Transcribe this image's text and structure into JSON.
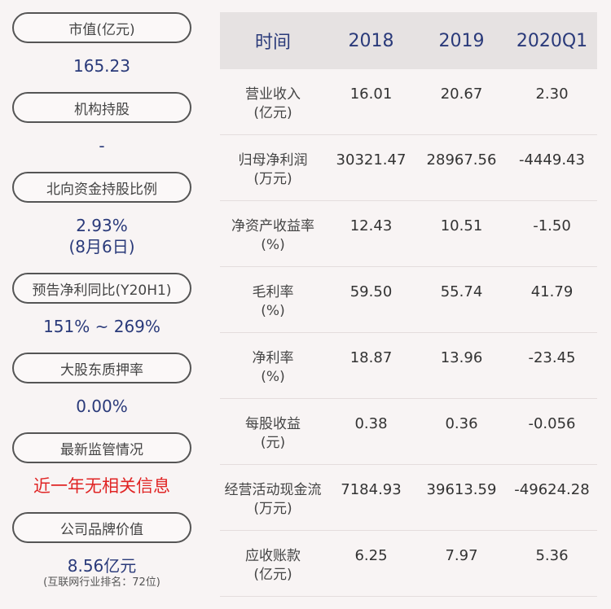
{
  "sidebar": {
    "items": [
      {
        "label": "市值(亿元)",
        "value": "165.23"
      },
      {
        "label": "机构持股",
        "value": "-"
      },
      {
        "label": "北向资金持股比例",
        "value": "2.93%",
        "value2": "(8月6日)"
      },
      {
        "label": "预告净利同比(Y20H1)",
        "value": "151% ~ 269%"
      },
      {
        "label": "大股东质押率",
        "value": "0.00%"
      },
      {
        "label": "最新监管情况",
        "value": "近一年无相关信息"
      },
      {
        "label": "公司品牌价值",
        "value": "8.56亿元",
        "note": "(互联网行业排名：72位)"
      }
    ]
  },
  "table": {
    "headers": [
      "时间",
      "2018",
      "2019",
      "2020Q1"
    ],
    "rows": [
      {
        "name": "营业收入",
        "unit": "(亿元)",
        "values": [
          "16.01",
          "20.67",
          "2.30"
        ]
      },
      {
        "name": "归母净利润",
        "unit": "(万元)",
        "values": [
          "30321.47",
          "28967.56",
          "-4449.43"
        ]
      },
      {
        "name": "净资产收益率",
        "unit": "(%)",
        "values": [
          "12.43",
          "10.51",
          "-1.50"
        ]
      },
      {
        "name": "毛利率",
        "unit": "(%)",
        "values": [
          "59.50",
          "55.74",
          "41.79"
        ]
      },
      {
        "name": "净利率",
        "unit": "(%)",
        "values": [
          "18.87",
          "13.96",
          "-23.45"
        ]
      },
      {
        "name": "每股收益",
        "unit": "(元)",
        "values": [
          "0.38",
          "0.36",
          "-0.056"
        ]
      },
      {
        "name": "经营活动现金流",
        "unit": "(万元)",
        "values": [
          "7184.93",
          "39613.59",
          "-49624.28"
        ]
      },
      {
        "name": "应收账款",
        "unit": "(亿元)",
        "values": [
          "6.25",
          "7.97",
          "5.36"
        ]
      }
    ]
  }
}
